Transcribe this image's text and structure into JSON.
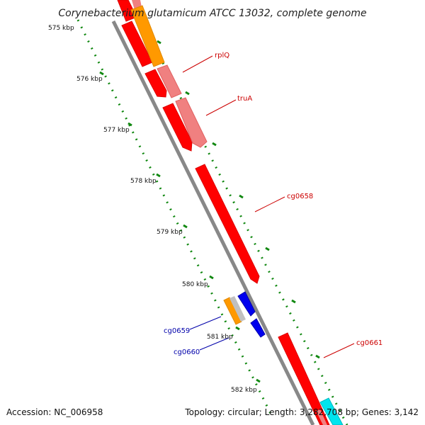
{
  "title": "Corynebacterium glutamicum ATCC 13032, complete genome",
  "footer": {
    "accession": "Accession: NC_006958",
    "summary": "Topology: circular; Length: 3,282,708 bp; Genes: 3,142"
  },
  "ticks": [
    "575 kbp",
    "576 kbp",
    "577 kbp",
    "578 kbp",
    "579 kbp",
    "580 kbp",
    "581 kbp",
    "582 kbp"
  ],
  "gene_labels": [
    {
      "text": "rplQ",
      "color": "#cc0000"
    },
    {
      "text": "truA",
      "color": "#cc0000"
    },
    {
      "text": "cg0658",
      "color": "#cc0000"
    },
    {
      "text": "cg0659",
      "color": "#0000aa"
    },
    {
      "text": "cg0660",
      "color": "#0000aa"
    },
    {
      "text": "cg0661",
      "color": "#cc0000"
    }
  ],
  "colors": {
    "backbone": "#888888",
    "forward_cds": "#ff0000",
    "light_cds": "#f08080",
    "orange_feature": "#ff9900",
    "reverse_cds": "#0000ee",
    "cyan_feature": "#00e5ee",
    "dots": "#118811"
  }
}
